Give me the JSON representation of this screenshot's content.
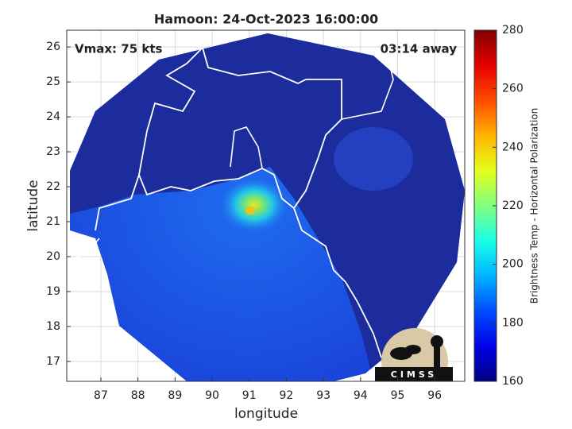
{
  "title": "Hamoon: 24-Oct-2023 16:00:00",
  "annotations": {
    "vmax": "Vmax: 75 kts",
    "time_away": "03:14 away"
  },
  "axes": {
    "xlabel": "longitude",
    "ylabel": "latitude",
    "xlim": [
      86.08,
      96.81
    ],
    "ylim": [
      16.43,
      26.48
    ],
    "xticks": [
      87,
      88,
      89,
      90,
      91,
      92,
      93,
      94,
      95,
      96
    ],
    "yticks": [
      17,
      18,
      19,
      20,
      21,
      22,
      23,
      24,
      25,
      26
    ],
    "grid": true
  },
  "colorbar": {
    "label": "Brightness Temp - Horizontal Polarization",
    "lim": [
      160,
      280
    ],
    "ticks": [
      160,
      180,
      200,
      220,
      240,
      260,
      280
    ],
    "colormap": "jet"
  },
  "logo": "CIMSS"
}
